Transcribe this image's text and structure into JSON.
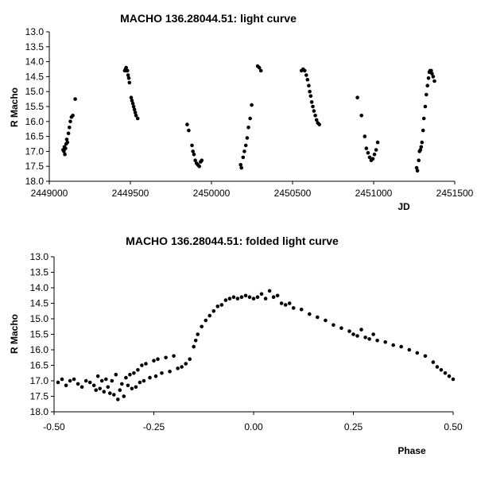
{
  "chart_data": [
    {
      "type": "scatter",
      "title": "MACHO 136.28044.51: light curve",
      "xlabel": "JD",
      "ylabel": "R Macho",
      "xlim": [
        2449000,
        2451500
      ],
      "ylim": [
        13.0,
        18.0
      ],
      "y_inverted": true,
      "grid": false,
      "legend": "none",
      "xticks": [
        "2449000",
        "2449500",
        "2450000",
        "2450500",
        "2451000",
        "2451500"
      ],
      "yticks": [
        "13.0",
        "13.5",
        "14.0",
        "14.5",
        "15.0",
        "15.5",
        "16.0",
        "16.5",
        "17.0",
        "17.5",
        "18.0"
      ],
      "points": [
        [
          2449085,
          16.95
        ],
        [
          2449090,
          17.0
        ],
        [
          2449093,
          16.85
        ],
        [
          2449096,
          17.1
        ],
        [
          2449100,
          16.9
        ],
        [
          2449104,
          16.75
        ],
        [
          2449108,
          16.6
        ],
        [
          2449112,
          16.7
        ],
        [
          2449118,
          16.4
        ],
        [
          2449124,
          16.2
        ],
        [
          2449130,
          16.0
        ],
        [
          2449137,
          15.85
        ],
        [
          2449145,
          15.8
        ],
        [
          2449160,
          15.25
        ],
        [
          2449465,
          14.3
        ],
        [
          2449470,
          14.25
        ],
        [
          2449474,
          14.2
        ],
        [
          2449478,
          14.3
        ],
        [
          2449482,
          14.3
        ],
        [
          2449486,
          14.45
        ],
        [
          2449490,
          14.55
        ],
        [
          2449494,
          14.7
        ],
        [
          2449505,
          15.2
        ],
        [
          2449510,
          15.3
        ],
        [
          2449515,
          15.4
        ],
        [
          2449520,
          15.5
        ],
        [
          2449525,
          15.6
        ],
        [
          2449530,
          15.7
        ],
        [
          2449535,
          15.8
        ],
        [
          2449545,
          15.9
        ],
        [
          2449850,
          16.1
        ],
        [
          2449860,
          16.3
        ],
        [
          2449880,
          16.8
        ],
        [
          2449886,
          17.0
        ],
        [
          2449892,
          17.1
        ],
        [
          2449900,
          17.3
        ],
        [
          2449908,
          17.4
        ],
        [
          2449916,
          17.45
        ],
        [
          2449925,
          17.5
        ],
        [
          2449933,
          17.35
        ],
        [
          2449940,
          17.3
        ],
        [
          2450180,
          17.45
        ],
        [
          2450185,
          17.55
        ],
        [
          2450195,
          17.2
        ],
        [
          2450203,
          17.0
        ],
        [
          2450212,
          16.8
        ],
        [
          2450220,
          16.55
        ],
        [
          2450228,
          16.2
        ],
        [
          2450238,
          15.9
        ],
        [
          2450248,
          15.45
        ],
        [
          2450285,
          14.15
        ],
        [
          2450295,
          14.2
        ],
        [
          2450305,
          14.3
        ],
        [
          2450555,
          14.3
        ],
        [
          2450565,
          14.25
        ],
        [
          2450575,
          14.3
        ],
        [
          2450585,
          14.45
        ],
        [
          2450592,
          14.6
        ],
        [
          2450600,
          14.8
        ],
        [
          2450606,
          15.0
        ],
        [
          2450612,
          15.15
        ],
        [
          2450618,
          15.35
        ],
        [
          2450625,
          15.5
        ],
        [
          2450632,
          15.65
        ],
        [
          2450640,
          15.8
        ],
        [
          2450648,
          15.95
        ],
        [
          2450656,
          16.05
        ],
        [
          2450665,
          16.1
        ],
        [
          2450900,
          15.2
        ],
        [
          2450925,
          15.8
        ],
        [
          2450945,
          16.5
        ],
        [
          2450955,
          16.9
        ],
        [
          2450965,
          17.05
        ],
        [
          2450975,
          17.2
        ],
        [
          2450985,
          17.3
        ],
        [
          2450995,
          17.25
        ],
        [
          2451005,
          17.1
        ],
        [
          2451015,
          16.95
        ],
        [
          2451025,
          16.7
        ],
        [
          2451265,
          17.55
        ],
        [
          2451270,
          17.65
        ],
        [
          2451278,
          17.3
        ],
        [
          2451283,
          17.0
        ],
        [
          2451288,
          16.95
        ],
        [
          2451293,
          16.85
        ],
        [
          2451298,
          16.7
        ],
        [
          2451305,
          16.3
        ],
        [
          2451310,
          15.9
        ],
        [
          2451318,
          15.5
        ],
        [
          2451325,
          15.1
        ],
        [
          2451332,
          14.8
        ],
        [
          2451338,
          14.55
        ],
        [
          2451343,
          14.35
        ],
        [
          2451348,
          14.3
        ],
        [
          2451355,
          14.3
        ],
        [
          2451360,
          14.4
        ],
        [
          2451367,
          14.5
        ],
        [
          2451375,
          14.65
        ]
      ]
    },
    {
      "type": "scatter",
      "title": "MACHO 136.28044.51: folded light curve",
      "xlabel": "Phase",
      "ylabel": "R Macho",
      "xlim": [
        -0.5,
        0.5
      ],
      "ylim": [
        13.0,
        18.0
      ],
      "y_inverted": true,
      "grid": false,
      "legend": "none",
      "xticks": [
        "-0.50",
        "-0.25",
        "0.00",
        "0.25",
        "0.50"
      ],
      "yticks": [
        "13.0",
        "13.5",
        "14.0",
        "14.5",
        "15.0",
        "15.5",
        "16.0",
        "16.5",
        "17.0",
        "17.5",
        "18.0"
      ],
      "points": [
        [
          -0.49,
          17.05
        ],
        [
          -0.48,
          16.95
        ],
        [
          -0.47,
          17.15
        ],
        [
          -0.46,
          17.0
        ],
        [
          -0.45,
          16.95
        ],
        [
          -0.44,
          17.1
        ],
        [
          -0.43,
          17.2
        ],
        [
          -0.42,
          17.0
        ],
        [
          -0.41,
          17.05
        ],
        [
          -0.4,
          17.15
        ],
        [
          -0.395,
          17.3
        ],
        [
          -0.39,
          16.85
        ],
        [
          -0.385,
          17.25
        ],
        [
          -0.38,
          17.0
        ],
        [
          -0.375,
          17.35
        ],
        [
          -0.37,
          16.95
        ],
        [
          -0.365,
          17.2
        ],
        [
          -0.36,
          17.4
        ],
        [
          -0.355,
          17.0
        ],
        [
          -0.35,
          17.45
        ],
        [
          -0.345,
          16.8
        ],
        [
          -0.34,
          17.6
        ],
        [
          -0.335,
          17.3
        ],
        [
          -0.33,
          17.1
        ],
        [
          -0.325,
          17.5
        ],
        [
          -0.32,
          16.9
        ],
        [
          -0.315,
          17.15
        ],
        [
          -0.31,
          16.8
        ],
        [
          -0.305,
          17.25
        ],
        [
          -0.3,
          16.75
        ],
        [
          -0.295,
          17.2
        ],
        [
          -0.29,
          16.65
        ],
        [
          -0.285,
          17.05
        ],
        [
          -0.28,
          16.5
        ],
        [
          -0.275,
          17.0
        ],
        [
          -0.27,
          16.45
        ],
        [
          -0.26,
          16.9
        ],
        [
          -0.25,
          16.35
        ],
        [
          -0.245,
          16.85
        ],
        [
          -0.24,
          16.3
        ],
        [
          -0.23,
          16.75
        ],
        [
          -0.22,
          16.25
        ],
        [
          -0.21,
          16.7
        ],
        [
          -0.2,
          16.2
        ],
        [
          -0.19,
          16.6
        ],
        [
          -0.18,
          16.55
        ],
        [
          -0.17,
          16.45
        ],
        [
          -0.16,
          16.3
        ],
        [
          -0.15,
          15.9
        ],
        [
          -0.145,
          15.7
        ],
        [
          -0.14,
          15.5
        ],
        [
          -0.13,
          15.25
        ],
        [
          -0.12,
          15.05
        ],
        [
          -0.11,
          14.9
        ],
        [
          -0.1,
          14.75
        ],
        [
          -0.09,
          14.6
        ],
        [
          -0.08,
          14.55
        ],
        [
          -0.07,
          14.4
        ],
        [
          -0.06,
          14.35
        ],
        [
          -0.05,
          14.3
        ],
        [
          -0.04,
          14.35
        ],
        [
          -0.03,
          14.3
        ],
        [
          -0.02,
          14.25
        ],
        [
          -0.01,
          14.3
        ],
        [
          0.0,
          14.35
        ],
        [
          0.01,
          14.3
        ],
        [
          0.02,
          14.2
        ],
        [
          0.03,
          14.35
        ],
        [
          0.04,
          14.1
        ],
        [
          0.05,
          14.3
        ],
        [
          0.06,
          14.25
        ],
        [
          0.07,
          14.5
        ],
        [
          0.08,
          14.55
        ],
        [
          0.09,
          14.5
        ],
        [
          0.1,
          14.65
        ],
        [
          0.12,
          14.7
        ],
        [
          0.14,
          14.85
        ],
        [
          0.16,
          14.95
        ],
        [
          0.18,
          15.05
        ],
        [
          0.2,
          15.2
        ],
        [
          0.22,
          15.3
        ],
        [
          0.24,
          15.4
        ],
        [
          0.25,
          15.5
        ],
        [
          0.26,
          15.55
        ],
        [
          0.27,
          15.35
        ],
        [
          0.28,
          15.6
        ],
        [
          0.29,
          15.65
        ],
        [
          0.3,
          15.5
        ],
        [
          0.31,
          15.7
        ],
        [
          0.33,
          15.75
        ],
        [
          0.35,
          15.85
        ],
        [
          0.37,
          15.9
        ],
        [
          0.39,
          16.0
        ],
        [
          0.41,
          16.1
        ],
        [
          0.43,
          16.2
        ],
        [
          0.45,
          16.4
        ],
        [
          0.46,
          16.55
        ],
        [
          0.47,
          16.65
        ],
        [
          0.48,
          16.75
        ],
        [
          0.49,
          16.85
        ],
        [
          0.5,
          16.95
        ]
      ]
    }
  ]
}
